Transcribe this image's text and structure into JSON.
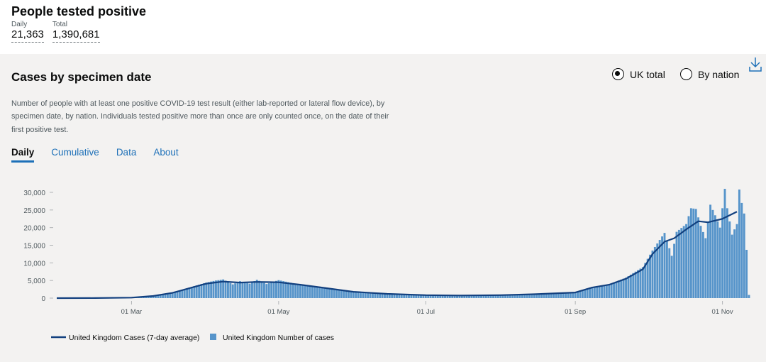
{
  "headline": {
    "title": "People tested positive",
    "metrics": [
      {
        "label": "Daily",
        "value": "21,363"
      },
      {
        "label": "Total",
        "value": "1,390,681"
      }
    ]
  },
  "card": {
    "title": "Cases by specimen date",
    "description": "Number of people with at least one positive COVID-19 test result (either lab-reported or lateral flow device), by specimen date, by nation. Individuals tested positive more than once are only counted once, on the date of their first positive test.",
    "toggle": {
      "options": [
        {
          "label": "UK total",
          "selected": true
        },
        {
          "label": "By nation",
          "selected": false
        }
      ]
    },
    "download_icon": "download-icon",
    "tabs": [
      {
        "label": "Daily",
        "active": true
      },
      {
        "label": "Cumulative",
        "active": false
      },
      {
        "label": "Data",
        "active": false
      },
      {
        "label": "About",
        "active": false
      }
    ]
  },
  "colors": {
    "link": "#1d70b8",
    "line": "#12407f",
    "bars": "#5694ca",
    "card_bg": "#f3f2f1"
  },
  "chart_data": {
    "type": "bar",
    "x_start": "2020-01-30",
    "x_end": "2020-11-12",
    "xtick_labels": [
      "01 Mar",
      "01 May",
      "01 Jul",
      "01 Sep",
      "01 Nov"
    ],
    "xtick_dates": [
      "2020-03-01",
      "2020-05-01",
      "2020-07-01",
      "2020-09-01",
      "2020-11-01"
    ],
    "ylim": [
      0,
      30000
    ],
    "yticks": [
      0,
      5000,
      10000,
      15000,
      20000,
      25000,
      30000
    ],
    "ytick_labels": [
      "0",
      "5,000",
      "10,000",
      "15,000",
      "20,000",
      "25,000",
      "30,000"
    ],
    "series": [
      {
        "name": "United Kingdom Cases (7-day average)",
        "kind": "line",
        "points": [
          [
            "2020-01-30",
            0
          ],
          [
            "2020-02-15",
            30
          ],
          [
            "2020-03-01",
            150
          ],
          [
            "2020-03-10",
            600
          ],
          [
            "2020-03-18",
            1500
          ],
          [
            "2020-03-25",
            2800
          ],
          [
            "2020-04-01",
            4100
          ],
          [
            "2020-04-08",
            4700
          ],
          [
            "2020-04-15",
            4400
          ],
          [
            "2020-04-22",
            4600
          ],
          [
            "2020-05-01",
            4500
          ],
          [
            "2020-05-10",
            3800
          ],
          [
            "2020-05-20",
            2900
          ],
          [
            "2020-06-01",
            1800
          ],
          [
            "2020-06-15",
            1200
          ],
          [
            "2020-07-01",
            850
          ],
          [
            "2020-07-15",
            750
          ],
          [
            "2020-08-01",
            850
          ],
          [
            "2020-08-15",
            1100
          ],
          [
            "2020-09-01",
            1600
          ],
          [
            "2020-09-08",
            3000
          ],
          [
            "2020-09-15",
            3800
          ],
          [
            "2020-09-22",
            5500
          ],
          [
            "2020-09-29",
            8200
          ],
          [
            "2020-10-03",
            12500
          ],
          [
            "2020-10-08",
            16000
          ],
          [
            "2020-10-12",
            17000
          ],
          [
            "2020-10-17",
            19500
          ],
          [
            "2020-10-22",
            21800
          ],
          [
            "2020-10-26",
            21500
          ],
          [
            "2020-11-01",
            22500
          ],
          [
            "2020-11-07",
            24500
          ]
        ]
      },
      {
        "name": "United Kingdom Number of cases",
        "kind": "bar",
        "points": [
          [
            "2020-03-01",
            150
          ],
          [
            "2020-03-10",
            600
          ],
          [
            "2020-03-18",
            1500
          ],
          [
            "2020-03-25",
            3000
          ],
          [
            "2020-04-01",
            4400
          ],
          [
            "2020-04-05",
            5000
          ],
          [
            "2020-04-08",
            5300
          ],
          [
            "2020-04-12",
            3900
          ],
          [
            "2020-04-15",
            4800
          ],
          [
            "2020-04-19",
            4100
          ],
          [
            "2020-04-22",
            5200
          ],
          [
            "2020-04-26",
            4000
          ],
          [
            "2020-05-01",
            5100
          ],
          [
            "2020-05-10",
            3800
          ],
          [
            "2020-05-20",
            3100
          ],
          [
            "2020-06-01",
            1900
          ],
          [
            "2020-06-15",
            1200
          ],
          [
            "2020-07-01",
            850
          ],
          [
            "2020-07-15",
            750
          ],
          [
            "2020-08-01",
            850
          ],
          [
            "2020-08-15",
            1150
          ],
          [
            "2020-09-01",
            1700
          ],
          [
            "2020-09-08",
            3200
          ],
          [
            "2020-09-15",
            3900
          ],
          [
            "2020-09-22",
            5800
          ],
          [
            "2020-09-29",
            8800
          ],
          [
            "2020-10-03",
            13500
          ],
          [
            "2020-10-08",
            18500
          ],
          [
            "2020-10-11",
            12000
          ],
          [
            "2020-10-13",
            18800
          ],
          [
            "2020-10-17",
            21000
          ],
          [
            "2020-10-19",
            25500
          ],
          [
            "2020-10-21",
            25300
          ],
          [
            "2020-10-23",
            20500
          ],
          [
            "2020-10-25",
            17000
          ],
          [
            "2020-10-27",
            26500
          ],
          [
            "2020-10-29",
            23500
          ],
          [
            "2020-10-31",
            20000
          ],
          [
            "2020-11-02",
            31000
          ],
          [
            "2020-11-03",
            25500
          ],
          [
            "2020-11-05",
            18000
          ],
          [
            "2020-11-07",
            21000
          ],
          [
            "2020-11-08",
            30800
          ],
          [
            "2020-11-09",
            27000
          ],
          [
            "2020-11-10",
            24000
          ],
          [
            "2020-11-11",
            13700
          ],
          [
            "2020-11-12",
            900
          ]
        ]
      }
    ]
  }
}
